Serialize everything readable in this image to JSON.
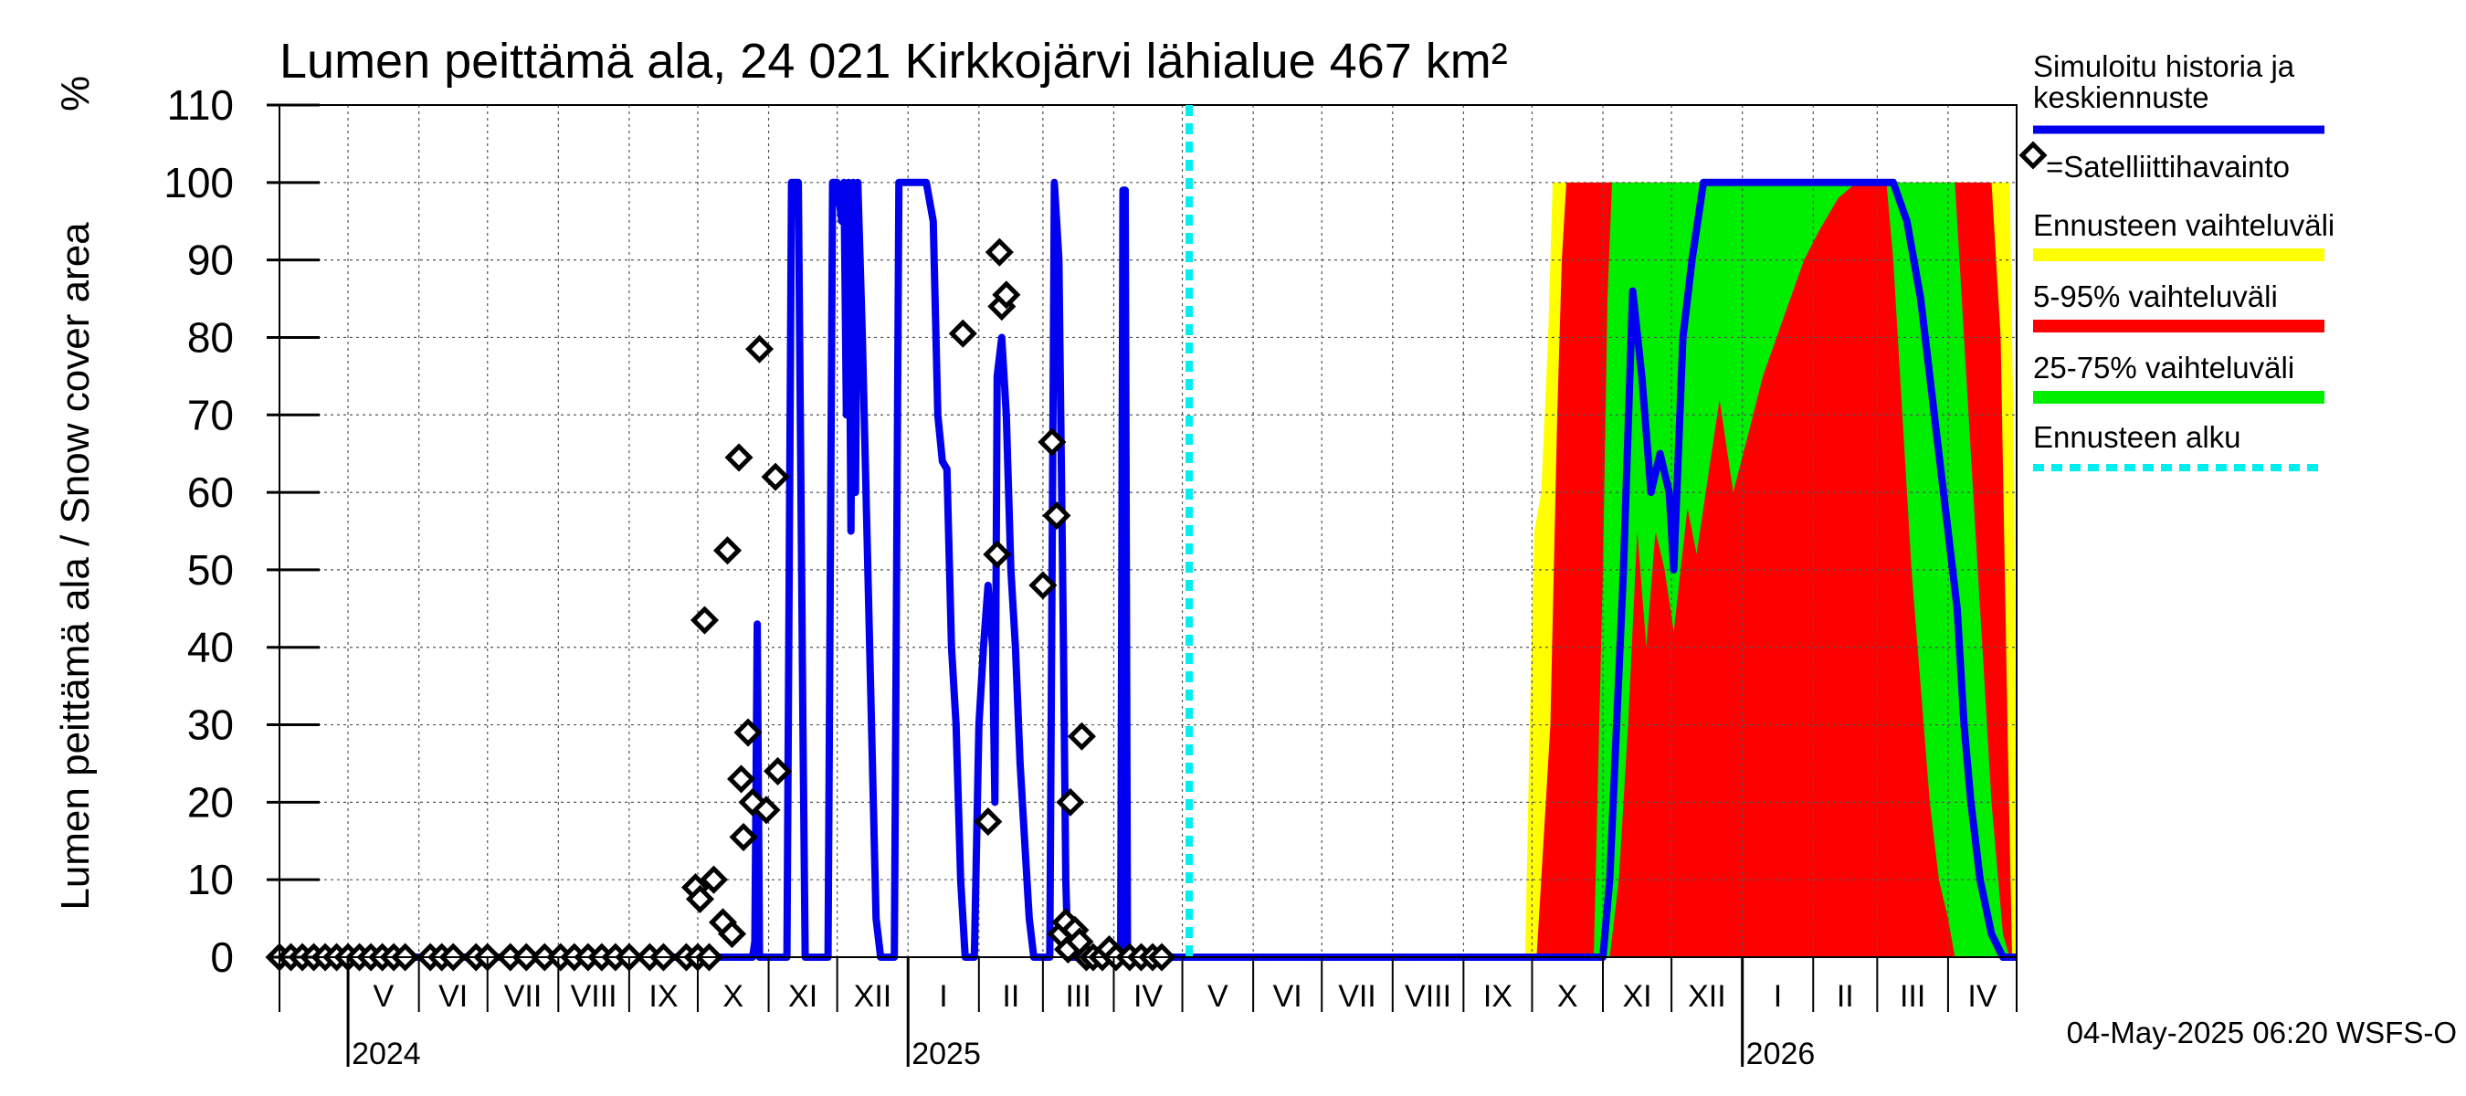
{
  "chart_data": {
    "type": "area",
    "title": "Lumen peittämä ala, 24 021 Kirkkojärvi lähialue 467 km²",
    "ylabel": "Lumen peittämä ala / Snow cover area",
    "yunit": "%",
    "ylim": [
      0,
      110
    ],
    "yticks": [
      0,
      10,
      20,
      30,
      40,
      50,
      60,
      70,
      80,
      90,
      100,
      110
    ],
    "xlim": [
      "2024-04-01",
      "2026-05-01"
    ],
    "months": [
      {
        "label": "V",
        "start": "2024-05-01",
        "end": "2024-06-01"
      },
      {
        "label": "VI",
        "start": "2024-06-01",
        "end": "2024-07-01"
      },
      {
        "label": "VII",
        "start": "2024-07-01",
        "end": "2024-08-01"
      },
      {
        "label": "VIII",
        "start": "2024-08-01",
        "end": "2024-09-01"
      },
      {
        "label": "IX",
        "start": "2024-09-01",
        "end": "2024-10-01"
      },
      {
        "label": "X",
        "start": "2024-10-01",
        "end": "2024-11-01"
      },
      {
        "label": "XI",
        "start": "2024-11-01",
        "end": "2024-12-01"
      },
      {
        "label": "XII",
        "start": "2024-12-01",
        "end": "2025-01-01"
      },
      {
        "label": "I",
        "start": "2025-01-01",
        "end": "2025-02-01"
      },
      {
        "label": "II",
        "start": "2025-02-01",
        "end": "2025-03-01"
      },
      {
        "label": "III",
        "start": "2025-03-01",
        "end": "2025-04-01"
      },
      {
        "label": "IV",
        "start": "2025-04-01",
        "end": "2025-05-01"
      },
      {
        "label": "V",
        "start": "2025-05-01",
        "end": "2025-06-01"
      },
      {
        "label": "VI",
        "start": "2025-06-01",
        "end": "2025-07-01"
      },
      {
        "label": "VII",
        "start": "2025-07-01",
        "end": "2025-08-01"
      },
      {
        "label": "VIII",
        "start": "2025-08-01",
        "end": "2025-09-01"
      },
      {
        "label": "IX",
        "start": "2025-09-01",
        "end": "2025-10-01"
      },
      {
        "label": "X",
        "start": "2025-10-01",
        "end": "2025-11-01"
      },
      {
        "label": "XI",
        "start": "2025-11-01",
        "end": "2025-12-01"
      },
      {
        "label": "XII",
        "start": "2025-12-01",
        "end": "2026-01-01"
      },
      {
        "label": "I",
        "start": "2026-01-01",
        "end": "2026-02-01"
      },
      {
        "label": "II",
        "start": "2026-02-01",
        "end": "2026-03-01"
      },
      {
        "label": "III",
        "start": "2026-03-01",
        "end": "2026-04-01"
      },
      {
        "label": "IV",
        "start": "2026-04-01",
        "end": "2026-05-01"
      }
    ],
    "years": [
      {
        "label": "2024",
        "date": "2024-05-01"
      },
      {
        "label": "2025",
        "date": "2025-01-01"
      },
      {
        "label": "2026",
        "date": "2026-01-01"
      }
    ],
    "forecast_start": "2025-05-04",
    "grid": true,
    "legend": {
      "placement": "right",
      "entries": [
        {
          "key": "sim",
          "label": "Simuloitu historia ja keskiennuste",
          "label_lines": [
            "Simuloitu historia ja",
            "keskiennuste"
          ],
          "color": "#0000ee",
          "style": "line"
        },
        {
          "key": "sat",
          "label": "=Satelliittihavainto",
          "color": "#000000",
          "style": "diamond"
        },
        {
          "key": "range",
          "label": "Ennusteen vaihteluväli",
          "color": "#ffff00",
          "style": "bar"
        },
        {
          "key": "p5_95",
          "label": "5-95% vaihteluväli",
          "color": "#ff0000",
          "style": "bar"
        },
        {
          "key": "p25_75",
          "label": "25-75% vaihteluväli",
          "color": "#00ee00",
          "style": "bar"
        },
        {
          "key": "fstart",
          "label": "Ennusteen alku",
          "color": "#00eeee",
          "style": "dashed"
        }
      ]
    },
    "footer": "04-May-2025 06:20 WSFS-O",
    "series": [
      {
        "name": "Simuloitu historia ja keskiennuste",
        "key": "sim",
        "color": "#0000ee",
        "points": [
          [
            "2024-04-01",
            0
          ],
          [
            "2024-10-25",
            0
          ],
          [
            "2024-10-26",
            2
          ],
          [
            "2024-10-27",
            43
          ],
          [
            "2024-10-28",
            0
          ],
          [
            "2024-11-09",
            0
          ],
          [
            "2024-11-11",
            100
          ],
          [
            "2024-11-14",
            100
          ],
          [
            "2024-11-16",
            30
          ],
          [
            "2024-11-17",
            0
          ],
          [
            "2024-11-27",
            0
          ],
          [
            "2024-11-29",
            100
          ],
          [
            "2024-12-01",
            100
          ],
          [
            "2024-12-03",
            95
          ],
          [
            "2024-12-04",
            100
          ],
          [
            "2024-12-05",
            70
          ],
          [
            "2024-12-06",
            100
          ],
          [
            "2024-12-07",
            55
          ],
          [
            "2024-12-08",
            100
          ],
          [
            "2024-12-09",
            60
          ],
          [
            "2024-12-10",
            100
          ],
          [
            "2024-12-12",
            80
          ],
          [
            "2024-12-14",
            55
          ],
          [
            "2024-12-16",
            30
          ],
          [
            "2024-12-18",
            5
          ],
          [
            "2024-12-20",
            0
          ],
          [
            "2024-12-26",
            0
          ],
          [
            "2024-12-28",
            100
          ],
          [
            "2025-01-09",
            100
          ],
          [
            "2025-01-12",
            95
          ],
          [
            "2025-01-14",
            70
          ],
          [
            "2025-01-16",
            64
          ],
          [
            "2025-01-18",
            63
          ],
          [
            "2025-01-20",
            40
          ],
          [
            "2025-01-22",
            30
          ],
          [
            "2025-01-24",
            10
          ],
          [
            "2025-01-26",
            0
          ],
          [
            "2025-01-30",
            0
          ],
          [
            "2025-02-01",
            30
          ],
          [
            "2025-02-03",
            40
          ],
          [
            "2025-02-05",
            48
          ],
          [
            "2025-02-07",
            40
          ],
          [
            "2025-02-08",
            20
          ],
          [
            "2025-02-09",
            75
          ],
          [
            "2025-02-11",
            80
          ],
          [
            "2025-02-13",
            70
          ],
          [
            "2025-02-15",
            50
          ],
          [
            "2025-02-17",
            40
          ],
          [
            "2025-02-19",
            25
          ],
          [
            "2025-02-21",
            15
          ],
          [
            "2025-02-23",
            5
          ],
          [
            "2025-02-25",
            0
          ],
          [
            "2025-03-04",
            0
          ],
          [
            "2025-03-06",
            100
          ],
          [
            "2025-03-08",
            90
          ],
          [
            "2025-03-10",
            40
          ],
          [
            "2025-03-11",
            10
          ],
          [
            "2025-03-12",
            0
          ],
          [
            "2025-04-04",
            0
          ],
          [
            "2025-04-05",
            99
          ],
          [
            "2025-04-06",
            99
          ],
          [
            "2025-04-07",
            0
          ],
          [
            "2025-11-01",
            0
          ],
          [
            "2025-11-04",
            10
          ],
          [
            "2025-11-10",
            50
          ],
          [
            "2025-11-14",
            86
          ],
          [
            "2025-11-18",
            75
          ],
          [
            "2025-11-22",
            60
          ],
          [
            "2025-11-26",
            65
          ],
          [
            "2025-11-30",
            60
          ],
          [
            "2025-12-02",
            50
          ],
          [
            "2025-12-06",
            80
          ],
          [
            "2025-12-10",
            90
          ],
          [
            "2025-12-15",
            100
          ],
          [
            "2026-03-08",
            100
          ],
          [
            "2026-03-14",
            95
          ],
          [
            "2026-03-20",
            85
          ],
          [
            "2026-03-26",
            70
          ],
          [
            "2026-04-01",
            55
          ],
          [
            "2026-04-05",
            45
          ],
          [
            "2026-04-08",
            30
          ],
          [
            "2026-04-11",
            20
          ],
          [
            "2026-04-15",
            10
          ],
          [
            "2026-04-20",
            3
          ],
          [
            "2026-04-25",
            0
          ],
          [
            "2026-05-01",
            0
          ]
        ]
      },
      {
        "name": "=Satelliittihavainto",
        "key": "sat",
        "color": "#000000",
        "points": [
          [
            "2024-04-01",
            0
          ],
          [
            "2024-04-06",
            0
          ],
          [
            "2024-04-11",
            0
          ],
          [
            "2024-04-16",
            0
          ],
          [
            "2024-04-21",
            0
          ],
          [
            "2024-04-26",
            0
          ],
          [
            "2024-05-01",
            0
          ],
          [
            "2024-05-06",
            0
          ],
          [
            "2024-05-11",
            0
          ],
          [
            "2024-05-16",
            0
          ],
          [
            "2024-05-21",
            0
          ],
          [
            "2024-05-26",
            0
          ],
          [
            "2024-06-06",
            0
          ],
          [
            "2024-06-11",
            0
          ],
          [
            "2024-06-16",
            0
          ],
          [
            "2024-06-26",
            0
          ],
          [
            "2024-07-01",
            0
          ],
          [
            "2024-07-11",
            0
          ],
          [
            "2024-07-18",
            0
          ],
          [
            "2024-07-26",
            0
          ],
          [
            "2024-08-02",
            0
          ],
          [
            "2024-08-08",
            0
          ],
          [
            "2024-08-14",
            0
          ],
          [
            "2024-08-20",
            0
          ],
          [
            "2024-08-26",
            0
          ],
          [
            "2024-09-01",
            0
          ],
          [
            "2024-09-10",
            0
          ],
          [
            "2024-09-16",
            0
          ],
          [
            "2024-09-26",
            0
          ],
          [
            "2024-10-01",
            0
          ],
          [
            "2024-10-06",
            0
          ],
          [
            "2024-09-30",
            9
          ],
          [
            "2024-10-02",
            7.5
          ],
          [
            "2024-10-04",
            43.5
          ],
          [
            "2024-10-08",
            10
          ],
          [
            "2024-10-12",
            4.5
          ],
          [
            "2024-10-14",
            52.5
          ],
          [
            "2024-10-16",
            3
          ],
          [
            "2024-10-19",
            64.5
          ],
          [
            "2024-10-20",
            23
          ],
          [
            "2024-10-21",
            15.5
          ],
          [
            "2024-10-23",
            29
          ],
          [
            "2024-10-25",
            20
          ],
          [
            "2024-10-28",
            78.5
          ],
          [
            "2024-10-31",
            19
          ],
          [
            "2024-11-04",
            62
          ],
          [
            "2024-11-05",
            24
          ],
          [
            "2025-01-25",
            80.5
          ],
          [
            "2025-02-05",
            17.5
          ],
          [
            "2025-02-09",
            52
          ],
          [
            "2025-02-10",
            91
          ],
          [
            "2025-02-11",
            84
          ],
          [
            "2025-02-13",
            85.5
          ],
          [
            "2025-03-01",
            48
          ],
          [
            "2025-03-05",
            66.5
          ],
          [
            "2025-03-07",
            57
          ],
          [
            "2025-03-09",
            3
          ],
          [
            "2025-03-11",
            4.5
          ],
          [
            "2025-03-12",
            1
          ],
          [
            "2025-03-13",
            20
          ],
          [
            "2025-03-15",
            3.5
          ],
          [
            "2025-03-17",
            2
          ],
          [
            "2025-03-18",
            28.5
          ],
          [
            "2025-03-20",
            0
          ],
          [
            "2025-03-23",
            0
          ],
          [
            "2025-03-27",
            0
          ],
          [
            "2025-03-30",
            1
          ],
          [
            "2025-04-02",
            0
          ],
          [
            "2025-04-08",
            0
          ],
          [
            "2025-04-13",
            0
          ],
          [
            "2025-04-18",
            0
          ],
          [
            "2025-04-22",
            0
          ]
        ]
      },
      {
        "name": "Ennusteen vaihteluväli",
        "key": "range",
        "color": "#ffff00",
        "lower": [
          [
            "2025-10-01",
            0
          ],
          [
            "2026-05-01",
            0
          ]
        ],
        "upper": [
          [
            "2025-09-28",
            0
          ],
          [
            "2025-09-30",
            30
          ],
          [
            "2025-10-02",
            55
          ],
          [
            "2025-10-05",
            60
          ],
          [
            "2025-10-08",
            80
          ],
          [
            "2025-10-10",
            100
          ],
          [
            "2026-04-28",
            100
          ],
          [
            "2026-04-30",
            60
          ],
          [
            "2026-05-01",
            0
          ]
        ]
      },
      {
        "name": "5-95% vaihteluväli",
        "key": "p5_95",
        "color": "#ff0000",
        "lower": [
          [
            "2025-10-03",
            0
          ],
          [
            "2026-04-28",
            0
          ]
        ],
        "upper": [
          [
            "2025-10-03",
            0
          ],
          [
            "2025-10-06",
            15
          ],
          [
            "2025-10-09",
            30
          ],
          [
            "2025-10-12",
            70
          ],
          [
            "2025-10-14",
            90
          ],
          [
            "2025-10-16",
            100
          ],
          [
            "2026-04-20",
            100
          ],
          [
            "2026-04-24",
            80
          ],
          [
            "2026-04-27",
            30
          ],
          [
            "2026-04-29",
            0
          ]
        ]
      },
      {
        "name": "25-75% vaihteluväli",
        "key": "p25_75",
        "color": "#00ee00",
        "lower": [
          [
            "2025-10-30",
            0
          ],
          [
            "2025-11-04",
            0
          ],
          [
            "2025-11-08",
            10
          ],
          [
            "2025-11-12",
            30
          ],
          [
            "2025-11-16",
            55
          ],
          [
            "2025-11-20",
            40
          ],
          [
            "2025-11-24",
            55
          ],
          [
            "2025-11-28",
            50
          ],
          [
            "2025-12-02",
            42
          ],
          [
            "2025-12-08",
            58
          ],
          [
            "2025-12-12",
            52
          ],
          [
            "2025-12-16",
            60
          ],
          [
            "2025-12-22",
            72
          ],
          [
            "2025-12-28",
            60
          ],
          [
            "2026-01-04",
            68
          ],
          [
            "2026-01-10",
            75
          ],
          [
            "2026-01-16",
            80
          ],
          [
            "2026-01-22",
            85
          ],
          [
            "2026-01-28",
            90
          ],
          [
            "2026-02-04",
            94
          ],
          [
            "2026-02-12",
            98
          ],
          [
            "2026-02-20",
            100
          ],
          [
            "2026-03-05",
            100
          ],
          [
            "2026-03-08",
            90
          ],
          [
            "2026-03-12",
            70
          ],
          [
            "2026-03-16",
            50
          ],
          [
            "2026-03-20",
            35
          ],
          [
            "2026-03-24",
            20
          ],
          [
            "2026-03-28",
            10
          ],
          [
            "2026-04-01",
            5
          ],
          [
            "2026-04-04",
            0
          ]
        ],
        "upper": [
          [
            "2025-10-28",
            0
          ],
          [
            "2025-11-01",
            50
          ],
          [
            "2025-11-03",
            85
          ],
          [
            "2025-11-05",
            100
          ],
          [
            "2026-04-04",
            100
          ],
          [
            "2026-04-08",
            80
          ],
          [
            "2026-04-12",
            60
          ],
          [
            "2026-04-16",
            40
          ],
          [
            "2026-04-20",
            20
          ],
          [
            "2026-04-25",
            3
          ],
          [
            "2026-04-28",
            0
          ]
        ]
      }
    ]
  }
}
